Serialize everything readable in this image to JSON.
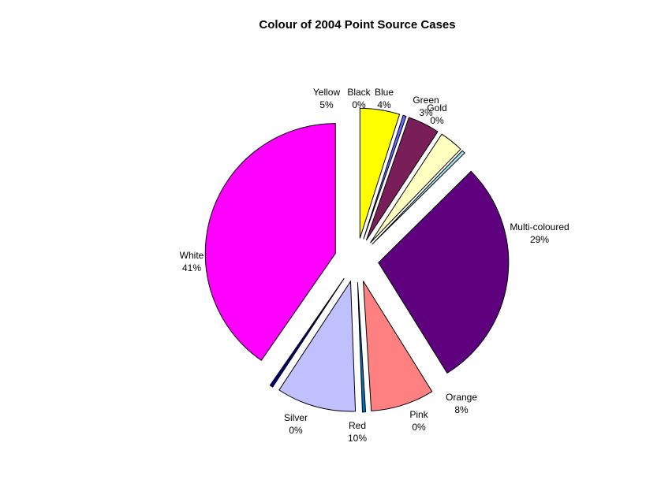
{
  "chart_data": {
    "type": "pie",
    "title": "Colour of 2004 Point Source Cases",
    "exploded": true,
    "slices": [
      {
        "name": "Yellow",
        "value": 5,
        "label": "5%",
        "color": "#FFFF00"
      },
      {
        "name": "Black",
        "value": 0.4,
        "label": "0%",
        "color": "#6666FF"
      },
      {
        "name": "Blue",
        "value": 4,
        "label": "4%",
        "color": "#7A1E5A"
      },
      {
        "name": "Green",
        "value": 3,
        "label": "3%",
        "color": "#FFFFC0"
      },
      {
        "name": "Gold",
        "value": 0.4,
        "label": "0%",
        "color": "#A8E4F0"
      },
      {
        "name": "Multi-coloured",
        "value": 29,
        "label": "29%",
        "color": "#5F007F"
      },
      {
        "name": "Orange",
        "value": 8,
        "label": "8%",
        "color": "#FF8080"
      },
      {
        "name": "Pink",
        "value": 0.4,
        "label": "0%",
        "color": "#0070C0"
      },
      {
        "name": "Red",
        "value": 10,
        "label": "10%",
        "color": "#C0C0FF"
      },
      {
        "name": "Silver",
        "value": 0.4,
        "label": "0%",
        "color": "#000080"
      },
      {
        "name": "White",
        "value": 41,
        "label": "41%",
        "color": "#FF00FF"
      }
    ]
  }
}
